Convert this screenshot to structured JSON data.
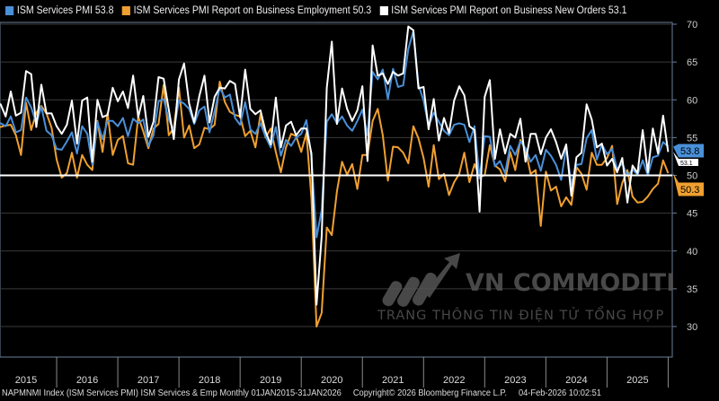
{
  "chart_data": {
    "type": "line",
    "title": "",
    "x_range": [
      "2015-01",
      "2026-01"
    ],
    "x_frequency": "monthly",
    "x_tick_labels": [
      "2015",
      "2016",
      "2017",
      "2018",
      "2019",
      "2020",
      "2021",
      "2022",
      "2023",
      "2024",
      "2025"
    ],
    "y_ticks": [
      30,
      35,
      40,
      45,
      50,
      55,
      60,
      65,
      70
    ],
    "ylim": [
      29,
      71
    ],
    "y_axis_side": "right",
    "grid": true,
    "reference_line": 50,
    "background": "#000000",
    "legend_placement": "top",
    "series": [
      {
        "name": "ISM Services PMI",
        "last_value": "53.8",
        "color": "#4a90d9",
        "values": [
          56.7,
          56.9,
          56.5,
          57.8,
          55.7,
          56.0,
          60.3,
          59.0,
          56.9,
          59.1,
          55.9,
          55.3,
          53.5,
          53.4,
          54.5,
          55.7,
          52.9,
          56.5,
          55.5,
          51.4,
          57.1,
          54.8,
          57.2,
          57.2,
          56.5,
          57.6,
          55.2,
          57.5,
          56.9,
          57.4,
          53.9,
          55.3,
          59.8,
          60.1,
          57.4,
          55.9,
          59.9,
          59.5,
          58.8,
          56.8,
          58.6,
          59.1,
          55.7,
          58.5,
          61.6,
          60.3,
          60.7,
          57.6,
          56.7,
          59.7,
          56.1,
          55.5,
          56.9,
          55.1,
          53.7,
          56.4,
          52.6,
          54.7,
          53.9,
          55.0,
          55.5,
          57.3,
          52.5,
          41.8,
          45.4,
          57.1,
          58.1,
          56.9,
          57.8,
          56.6,
          55.9,
          57.2,
          58.7,
          55.3,
          63.7,
          62.7,
          64.0,
          60.1,
          64.1,
          61.7,
          61.9,
          66.7,
          69.1,
          62.0,
          59.9,
          56.5,
          58.3,
          57.1,
          55.9,
          55.3,
          56.7,
          56.9,
          56.7,
          54.4,
          56.5,
          49.6,
          55.2,
          55.1,
          51.2,
          51.9,
          50.3,
          53.9,
          52.7,
          54.5,
          53.6,
          51.8,
          52.7,
          50.6,
          53.4,
          52.6,
          51.4,
          49.4,
          53.8,
          48.8,
          51.4,
          51.5,
          54.9,
          56.0,
          52.1,
          54.1,
          52.8,
          53.5,
          50.8,
          51.6,
          49.9,
          50.8,
          50.1,
          52.0,
          50.0,
          52.4,
          52.6,
          54.4,
          53.8
        ]
      },
      {
        "name": "ISM Services PMI Report on Business Employment",
        "last_value": "50.3",
        "color": "#f0a030",
        "values": [
          56.6,
          56.4,
          56.6,
          56.7,
          55.3,
          52.7,
          59.6,
          56.0,
          58.3,
          59.2,
          58.2,
          56.3,
          52.1,
          49.7,
          50.3,
          53.0,
          49.7,
          52.7,
          51.4,
          50.7,
          57.2,
          53.1,
          58.2,
          52.7,
          54.7,
          55.2,
          51.6,
          51.4,
          57.8,
          55.8,
          53.6,
          56.2,
          56.8,
          62.0,
          55.3,
          56.3,
          61.6,
          55.0,
          56.6,
          53.6,
          54.1,
          56.3,
          56.1,
          56.7,
          62.4,
          59.7,
          58.4,
          58.0,
          57.8,
          55.2,
          55.9,
          53.7,
          58.1,
          55.0,
          56.2,
          53.1,
          50.4,
          53.7,
          55.5,
          55.2,
          53.1,
          55.6,
          47.0,
          30.0,
          31.8,
          43.1,
          42.1,
          47.9,
          51.8,
          50.1,
          51.5,
          48.2,
          52.7,
          52.7,
          57.2,
          58.8,
          55.3,
          49.3,
          53.8,
          53.7,
          53.0,
          51.6,
          56.5,
          54.9,
          52.3,
          48.5,
          54.0,
          49.5,
          50.2,
          47.4,
          49.1,
          50.2,
          53.0,
          49.1,
          51.5,
          49.8,
          50.0,
          54.0,
          51.3,
          50.8,
          49.2,
          53.1,
          50.7,
          54.7,
          53.4,
          50.2,
          50.7,
          43.3,
          50.5,
          48.0,
          48.5,
          45.9,
          47.1,
          46.1,
          51.1,
          50.2,
          48.1,
          53.0,
          51.4,
          51.4,
          52.3,
          53.9,
          46.2,
          49.0,
          50.7,
          47.2,
          46.4,
          46.5,
          47.2,
          48.2,
          48.9,
          52.0,
          50.3
        ]
      },
      {
        "name": "ISM Services PMI Report on Business New Orders",
        "last_value": "53.1",
        "color": "#ffffff",
        "values": [
          59.5,
          59.4,
          57.8,
          61.1,
          57.9,
          58.3,
          63.8,
          63.4,
          56.4,
          62.0,
          58.2,
          58.2,
          56.5,
          55.5,
          56.7,
          59.9,
          54.2,
          59.9,
          60.3,
          51.8,
          60.0,
          57.7,
          58.0,
          61.6,
          59.8,
          61.1,
          58.9,
          63.2,
          57.7,
          60.5,
          55.1,
          57.1,
          63.0,
          62.8,
          58.7,
          54.8,
          62.7,
          64.8,
          59.5,
          57.0,
          60.5,
          63.2,
          57.0,
          60.4,
          61.6,
          61.5,
          62.5,
          62.1,
          57.7,
          64.0,
          58.8,
          58.1,
          58.6,
          55.8,
          54.1,
          60.3,
          53.7,
          56.6,
          57.1,
          55.3,
          56.2,
          56.2,
          52.9,
          32.9,
          41.9,
          61.6,
          67.7,
          56.8,
          61.5,
          58.8,
          57.2,
          58.6,
          61.8,
          51.9,
          67.2,
          63.2,
          63.5,
          62.1,
          63.7,
          63.2,
          63.5,
          69.7,
          69.2,
          61.5,
          61.7,
          56.1,
          60.1,
          54.6,
          57.6,
          55.6,
          59.9,
          61.8,
          60.6,
          56.5,
          56.0,
          45.2,
          60.4,
          62.6,
          52.2,
          56.1,
          52.9,
          55.5,
          55.0,
          57.5,
          51.8,
          55.5,
          55.5,
          52.8,
          55.0,
          56.1,
          54.4,
          52.2,
          54.1,
          47.3,
          52.4,
          53.0,
          59.4,
          57.4,
          53.7,
          54.2,
          51.3,
          52.2,
          50.4,
          52.3,
          46.4,
          51.3,
          50.3,
          56.0,
          50.4,
          56.2,
          52.9,
          57.9,
          53.1
        ]
      }
    ]
  },
  "legend": [
    {
      "label": "ISM Services PMI 53.8",
      "color": "#4a90d9"
    },
    {
      "label": "ISM Services PMI Report on Business Employment 50.3",
      "color": "#f0a030"
    },
    {
      "label": "ISM Services PMI Report on Business New Orders 53.1",
      "color": "#ffffff"
    }
  ],
  "footer": {
    "description": "NAPMNMI Index (ISM Services PMI) ISM Services & Emp Monthly 01JAN2015-31JAN2026",
    "copyright": "Copyright© 2026 Bloomberg Finance L.P.",
    "timestamp": "04-Feb-2026 10:02:51"
  },
  "watermark": {
    "title": "VN COMMODITIES",
    "subtitle": "TRANG THÔNG TIN ĐIỆN TỬ TỔNG HỢP"
  }
}
